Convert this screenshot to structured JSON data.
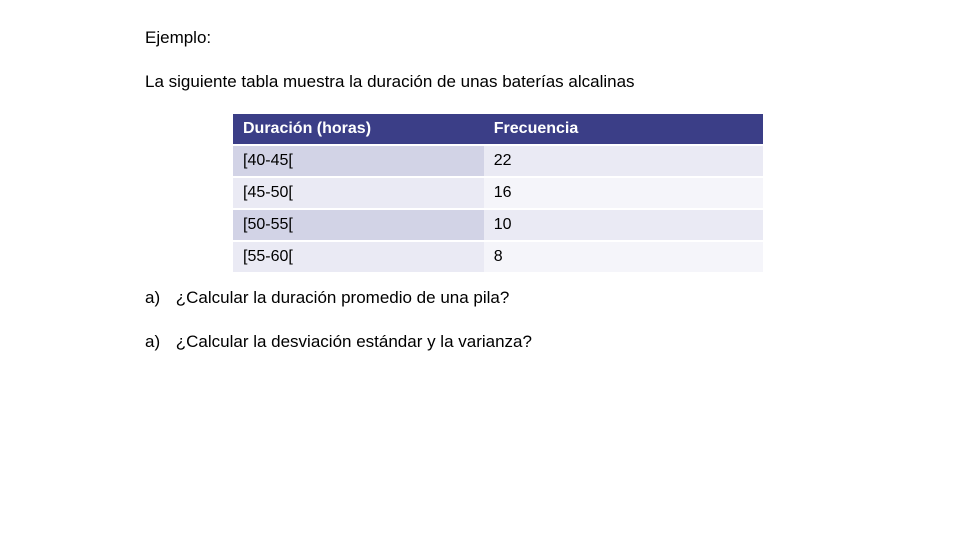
{
  "heading": "Ejemplo:",
  "intro": "La siguiente tabla muestra la duración de unas baterías alcalinas",
  "table": {
    "header_bg": "#3b3e87",
    "header_fg": "#ffffff",
    "row_even_left_bg": "#d2d3e6",
    "row_even_right_bg": "#eaeaf4",
    "row_odd_left_bg": "#eaeaf4",
    "row_odd_right_bg": "#f5f5fa",
    "columns": [
      "Duración (horas)",
      "Frecuencia"
    ],
    "rows": [
      {
        "range": "[40-45[",
        "freq": "22"
      },
      {
        "range": "[45-50[",
        "freq": "16"
      },
      {
        "range": "[50-55[",
        "freq": "10"
      },
      {
        "range": "[55-60[",
        "freq": "8"
      }
    ]
  },
  "questions": {
    "a_marker": "a)",
    "q1": "¿Calcular la duración promedio de una pila?",
    "q2": "¿Calcular la desviación estándar y la varianza?"
  },
  "fonts": {
    "body_size_pt": 13,
    "family": "Arial"
  }
}
